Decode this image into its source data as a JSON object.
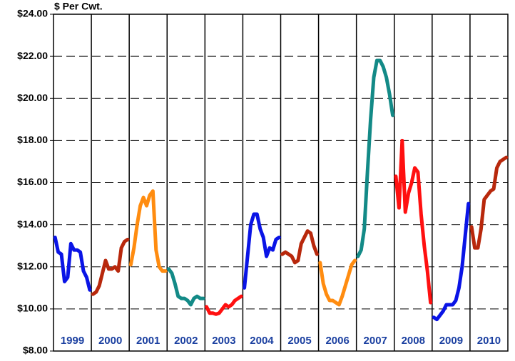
{
  "chart_data": {
    "type": "line",
    "y_label": "$ Per Cwt.",
    "ylim": [
      8,
      24
    ],
    "yticks": [
      {
        "value": 8,
        "label": "$8.00"
      },
      {
        "value": 10,
        "label": "$10.00"
      },
      {
        "value": 12,
        "label": "$12.00"
      },
      {
        "value": 14,
        "label": "$14.00"
      },
      {
        "value": 16,
        "label": "$16.00"
      },
      {
        "value": 18,
        "label": "$18.00"
      },
      {
        "value": 20,
        "label": "$20.00"
      },
      {
        "value": 22,
        "label": "$22.00"
      },
      {
        "value": 24,
        "label": "$24.00"
      }
    ],
    "grid": true,
    "series": [
      {
        "name": "1999",
        "color": "#0a14e6",
        "values": [
          13.4,
          12.7,
          12.6,
          11.3,
          11.5,
          13.1,
          12.8,
          12.8,
          12.7,
          11.8,
          11.5,
          10.9
        ]
      },
      {
        "name": "2000",
        "color": "#b8280c",
        "values": [
          10.7,
          10.8,
          11.1,
          11.7,
          12.3,
          11.9,
          11.9,
          12.0,
          11.8,
          12.9,
          13.2,
          13.3
        ]
      },
      {
        "name": "2001",
        "color": "#ff8c10",
        "values": [
          12.1,
          12.9,
          14.0,
          14.9,
          15.3,
          14.9,
          15.4,
          15.6,
          12.8,
          12.0,
          11.8,
          11.8
        ]
      },
      {
        "name": "2002",
        "color": "#138a87",
        "values": [
          11.9,
          11.7,
          11.2,
          10.6,
          10.5,
          10.5,
          10.4,
          10.2,
          10.5,
          10.6,
          10.5,
          10.5
        ]
      },
      {
        "name": "2003",
        "color": "#ff1010",
        "values": [
          10.1,
          9.8,
          9.8,
          9.75,
          9.8,
          10.0,
          10.2,
          10.1,
          10.2,
          10.4,
          10.5,
          10.6
        ]
      },
      {
        "name": "2004",
        "color": "#0a14e6",
        "values": [
          11.0,
          12.5,
          14.0,
          14.5,
          14.5,
          13.8,
          13.4,
          12.5,
          12.9,
          12.8,
          13.3,
          13.4
        ]
      },
      {
        "name": "2005",
        "color": "#b8280c",
        "values": [
          12.6,
          12.7,
          12.6,
          12.5,
          12.2,
          12.3,
          13.1,
          13.4,
          13.7,
          13.6,
          13.0,
          12.6
        ]
      },
      {
        "name": "2006",
        "color": "#ff8c10",
        "values": [
          12.2,
          11.2,
          10.7,
          10.4,
          10.4,
          10.3,
          10.2,
          10.6,
          11.1,
          11.6,
          12.1,
          12.3
        ]
      },
      {
        "name": "2007",
        "color": "#138a87",
        "values": [
          12.5,
          12.8,
          13.8,
          16.5,
          19.0,
          21.0,
          21.8,
          21.8,
          21.5,
          21.0,
          20.2,
          19.2
        ]
      },
      {
        "name": "2008",
        "color": "#ff1010",
        "values": [
          16.3,
          14.8,
          18.0,
          14.6,
          15.5,
          16.0,
          16.7,
          16.5,
          14.5,
          13.0,
          11.8,
          10.3
        ]
      },
      {
        "name": "2009",
        "color": "#0a14e6",
        "values": [
          9.6,
          9.5,
          9.7,
          9.9,
          10.2,
          10.2,
          10.2,
          10.4,
          11.0,
          12.0,
          13.5,
          15.0
        ]
      },
      {
        "name": "2010",
        "color": "#b8280c",
        "values": [
          13.9,
          12.9,
          12.9,
          13.8,
          15.2,
          15.4,
          15.6,
          15.7,
          16.7,
          17.0,
          17.1,
          17.2
        ]
      }
    ]
  }
}
